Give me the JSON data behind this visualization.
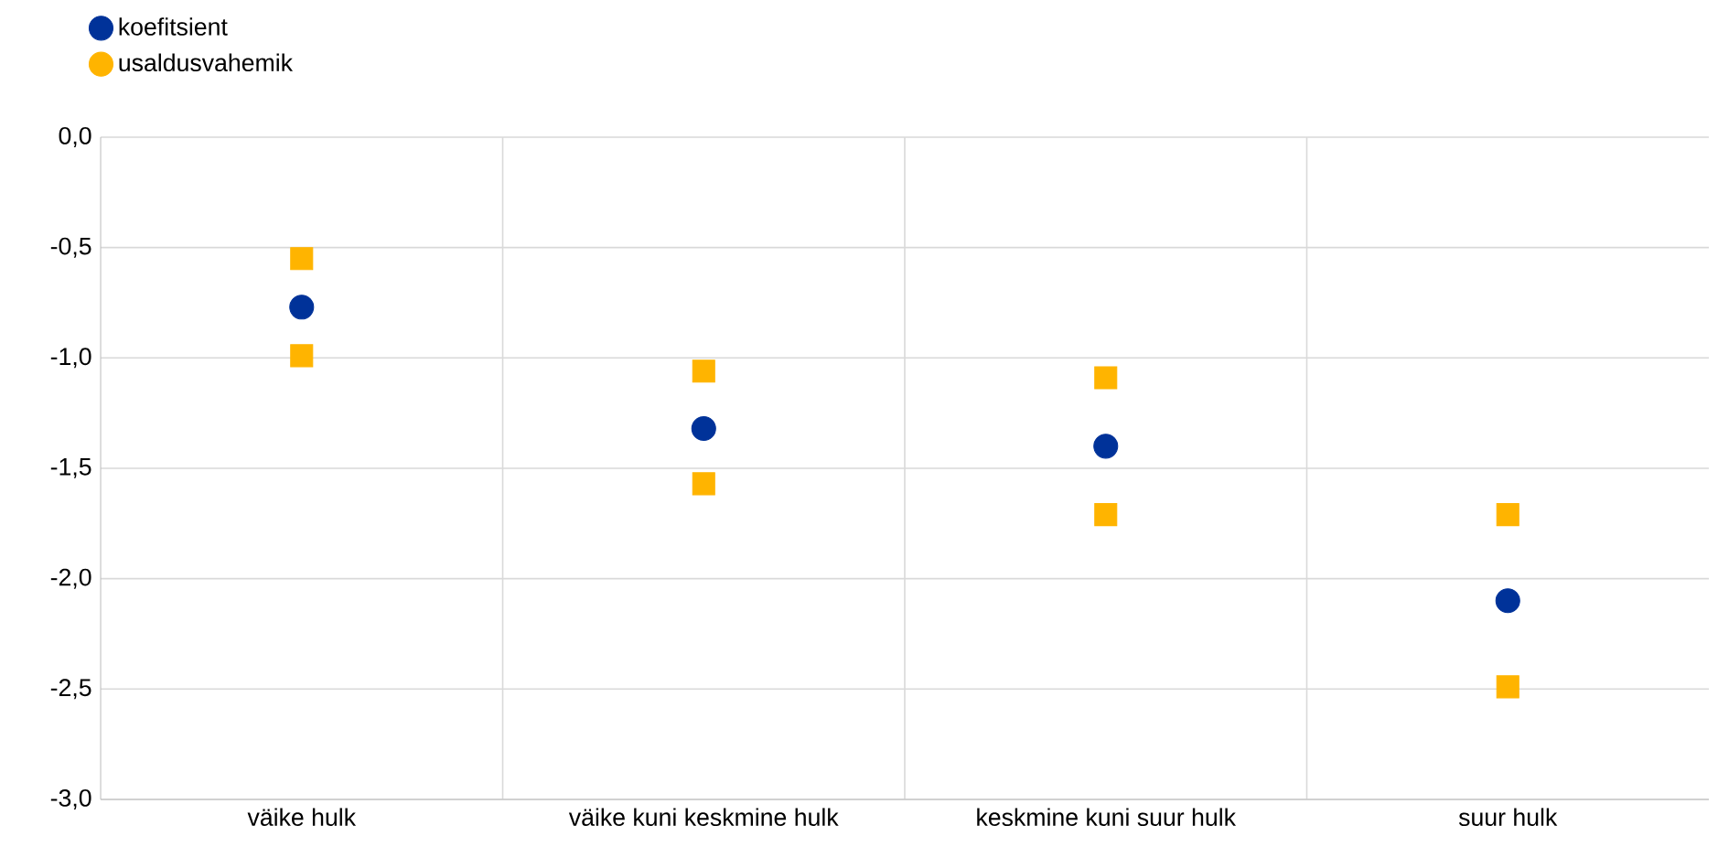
{
  "chart_data": {
    "type": "scatter",
    "categories": [
      "väike hulk",
      "väike kuni keskmine hulk",
      "keskmine kuni suur hulk",
      "suur hulk"
    ],
    "series": [
      {
        "name": "koefitsient",
        "color": "#003299",
        "marker": "circle",
        "values": [
          -0.77,
          -1.32,
          -1.4,
          -2.1
        ]
      },
      {
        "name": "usaldusvahemik",
        "color": "#ffb400",
        "marker": "square",
        "values": [
          -0.55,
          -1.06,
          -1.09,
          -1.71
        ]
      },
      {
        "color": "#ffb400",
        "marker": "square",
        "values": [
          -0.99,
          -1.57,
          -1.71,
          -2.49
        ]
      }
    ],
    "ylim": [
      -3.0,
      0.0
    ],
    "yticks": [
      {
        "value": 0.0,
        "label": "0,0"
      },
      {
        "value": -0.5,
        "label": "-0,5"
      },
      {
        "value": -1.0,
        "label": "-1,0"
      },
      {
        "value": -1.5,
        "label": "-1,5"
      },
      {
        "value": -2.0,
        "label": "-2,0"
      },
      {
        "value": -2.5,
        "label": "-2,5"
      },
      {
        "value": -3.0,
        "label": "-3,0"
      }
    ],
    "grid": true,
    "legend": "top left"
  }
}
